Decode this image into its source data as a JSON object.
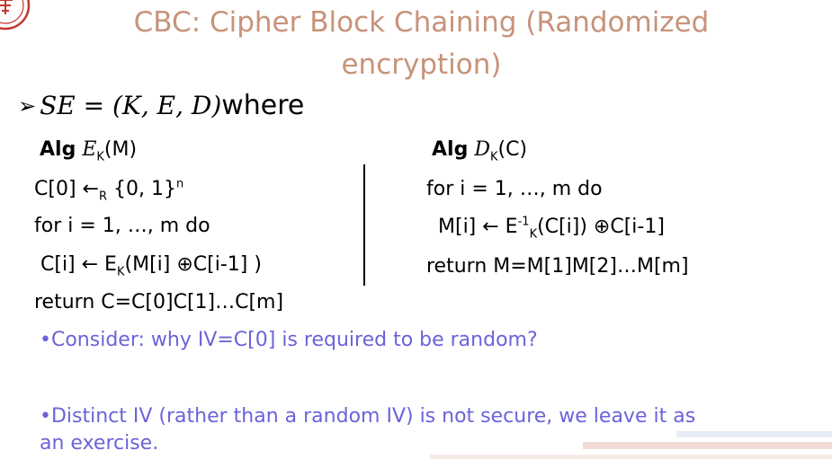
{
  "title": {
    "line1": "CBC: Cipher Block Chaining (Randomized",
    "line2": "encryption)"
  },
  "se_line": {
    "bullet": "➢",
    "lhs": "SE = (K, E, D)",
    "where": " where"
  },
  "enc": {
    "alg_word": "Alg",
    "alg_symbol": "E",
    "alg_sub": "K",
    "alg_arg": "(M)",
    "line1_a": "C[0] ",
    "line1_arrow": "←",
    "line1_sub": "R",
    "line1_b": " {0, 1}",
    "line1_sup": "n",
    "line2": "for i = 1, …, m do",
    "line3_a": "C[i] ← E",
    "line3_sub": "K",
    "line3_b": "(M[i] ⊕C[i-1] )",
    "line4": "return C=C[0]C[1]…C[m]"
  },
  "dec": {
    "alg_word": "Alg",
    "alg_symbol": "D",
    "alg_sub": "K",
    "alg_arg": "(C)",
    "line1": "for i = 1, …, m do",
    "line2_a": "M[i] ← E",
    "line2_sup": "-1",
    "line2_sub": "K",
    "line2_b": "(C[i]) ⊕C[i-1]",
    "line3": "return M=M[1]M[2]…M[m]"
  },
  "notes": {
    "bullet": "•",
    "note1": "Consider: why IV=C[0] is required to be random?",
    "note2_line1": "Distinct IV (rather than a random IV) is not secure, we leave it as",
    "note2_line2": "an exercise."
  },
  "colors": {
    "title": "#c79379",
    "notes": "#6b63d8",
    "text": "#000000"
  },
  "icons": {
    "logo": "university-seal-logo"
  }
}
